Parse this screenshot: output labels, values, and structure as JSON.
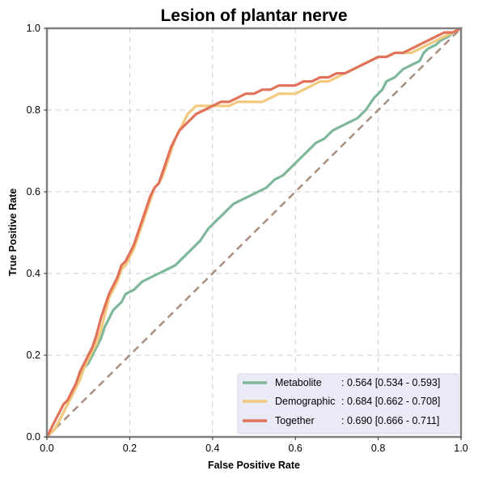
{
  "chart_data": {
    "type": "line",
    "title": "Lesion of plantar nerve",
    "xlabel": "False Positive Rate",
    "ylabel": "True Positive Rate",
    "xlim": [
      0,
      1
    ],
    "ylim": [
      0,
      1
    ],
    "xticks": [
      "0.0",
      "0.2",
      "0.4",
      "0.6",
      "0.8",
      "1.0"
    ],
    "yticks": [
      "0.0",
      "0.2",
      "0.4",
      "0.6",
      "0.8",
      "1.0"
    ],
    "grid": true,
    "legend_position": "lower-right",
    "series": [
      {
        "name": "Metabolite",
        "legend_name": "Metabolite",
        "legend_value": ": 0.564 [0.534 - 0.593]",
        "color": "#7fb79b",
        "points": [
          [
            0,
            0
          ],
          [
            0.01,
            0.01
          ],
          [
            0.02,
            0.02
          ],
          [
            0.03,
            0.04
          ],
          [
            0.04,
            0.06
          ],
          [
            0.05,
            0.08
          ],
          [
            0.06,
            0.1
          ],
          [
            0.07,
            0.12
          ],
          [
            0.08,
            0.15
          ],
          [
            0.09,
            0.17
          ],
          [
            0.1,
            0.18
          ],
          [
            0.11,
            0.2
          ],
          [
            0.12,
            0.22
          ],
          [
            0.13,
            0.24
          ],
          [
            0.14,
            0.27
          ],
          [
            0.15,
            0.29
          ],
          [
            0.16,
            0.31
          ],
          [
            0.17,
            0.32
          ],
          [
            0.18,
            0.33
          ],
          [
            0.19,
            0.35
          ],
          [
            0.21,
            0.36
          ],
          [
            0.23,
            0.38
          ],
          [
            0.25,
            0.39
          ],
          [
            0.27,
            0.4
          ],
          [
            0.29,
            0.41
          ],
          [
            0.31,
            0.42
          ],
          [
            0.33,
            0.44
          ],
          [
            0.35,
            0.46
          ],
          [
            0.37,
            0.48
          ],
          [
            0.39,
            0.51
          ],
          [
            0.41,
            0.53
          ],
          [
            0.43,
            0.55
          ],
          [
            0.45,
            0.57
          ],
          [
            0.47,
            0.58
          ],
          [
            0.49,
            0.59
          ],
          [
            0.51,
            0.6
          ],
          [
            0.53,
            0.61
          ],
          [
            0.55,
            0.63
          ],
          [
            0.57,
            0.64
          ],
          [
            0.59,
            0.66
          ],
          [
            0.61,
            0.68
          ],
          [
            0.63,
            0.7
          ],
          [
            0.65,
            0.72
          ],
          [
            0.67,
            0.73
          ],
          [
            0.69,
            0.75
          ],
          [
            0.71,
            0.76
          ],
          [
            0.73,
            0.77
          ],
          [
            0.75,
            0.78
          ],
          [
            0.77,
            0.8
          ],
          [
            0.79,
            0.83
          ],
          [
            0.81,
            0.85
          ],
          [
            0.82,
            0.87
          ],
          [
            0.84,
            0.88
          ],
          [
            0.86,
            0.9
          ],
          [
            0.88,
            0.91
          ],
          [
            0.9,
            0.92
          ],
          [
            0.91,
            0.94
          ],
          [
            0.92,
            0.95
          ],
          [
            0.94,
            0.96
          ],
          [
            0.95,
            0.97
          ],
          [
            0.97,
            0.98
          ],
          [
            0.98,
            0.99
          ],
          [
            1,
            1
          ]
        ]
      },
      {
        "name": "Demographic",
        "legend_name": "Demographic",
        "legend_value": ": 0.684 [0.662 - 0.708]",
        "color": "#f2c97e",
        "points": [
          [
            0,
            0
          ],
          [
            0.01,
            0.01
          ],
          [
            0.02,
            0.02
          ],
          [
            0.03,
            0.04
          ],
          [
            0.04,
            0.06
          ],
          [
            0.05,
            0.08
          ],
          [
            0.06,
            0.1
          ],
          [
            0.07,
            0.12
          ],
          [
            0.08,
            0.14
          ],
          [
            0.09,
            0.17
          ],
          [
            0.1,
            0.19
          ],
          [
            0.11,
            0.21
          ],
          [
            0.12,
            0.23
          ],
          [
            0.13,
            0.26
          ],
          [
            0.14,
            0.3
          ],
          [
            0.15,
            0.34
          ],
          [
            0.16,
            0.36
          ],
          [
            0.17,
            0.38
          ],
          [
            0.18,
            0.41
          ],
          [
            0.19,
            0.42
          ],
          [
            0.2,
            0.44
          ],
          [
            0.21,
            0.46
          ],
          [
            0.22,
            0.49
          ],
          [
            0.23,
            0.52
          ],
          [
            0.24,
            0.55
          ],
          [
            0.25,
            0.58
          ],
          [
            0.26,
            0.61
          ],
          [
            0.27,
            0.62
          ],
          [
            0.28,
            0.64
          ],
          [
            0.29,
            0.67
          ],
          [
            0.3,
            0.7
          ],
          [
            0.31,
            0.73
          ],
          [
            0.32,
            0.75
          ],
          [
            0.33,
            0.77
          ],
          [
            0.34,
            0.79
          ],
          [
            0.35,
            0.8
          ],
          [
            0.36,
            0.81
          ],
          [
            0.38,
            0.81
          ],
          [
            0.4,
            0.81
          ],
          [
            0.42,
            0.81
          ],
          [
            0.44,
            0.81
          ],
          [
            0.46,
            0.82
          ],
          [
            0.48,
            0.82
          ],
          [
            0.5,
            0.82
          ],
          [
            0.52,
            0.82
          ],
          [
            0.54,
            0.83
          ],
          [
            0.56,
            0.84
          ],
          [
            0.58,
            0.84
          ],
          [
            0.6,
            0.84
          ],
          [
            0.62,
            0.85
          ],
          [
            0.64,
            0.86
          ],
          [
            0.66,
            0.87
          ],
          [
            0.68,
            0.87
          ],
          [
            0.7,
            0.88
          ],
          [
            0.72,
            0.89
          ],
          [
            0.74,
            0.9
          ],
          [
            0.76,
            0.91
          ],
          [
            0.78,
            0.92
          ],
          [
            0.8,
            0.93
          ],
          [
            0.82,
            0.93
          ],
          [
            0.84,
            0.94
          ],
          [
            0.86,
            0.94
          ],
          [
            0.88,
            0.94
          ],
          [
            0.9,
            0.95
          ],
          [
            0.92,
            0.96
          ],
          [
            0.94,
            0.97
          ],
          [
            0.96,
            0.98
          ],
          [
            0.98,
            0.99
          ],
          [
            1,
            1
          ]
        ]
      },
      {
        "name": "Together",
        "legend_name": "Together",
        "legend_value": ": 0.690 [0.666 - 0.711]",
        "color": "#e0735a",
        "points": [
          [
            0,
            0
          ],
          [
            0.01,
            0.02
          ],
          [
            0.02,
            0.04
          ],
          [
            0.03,
            0.06
          ],
          [
            0.04,
            0.08
          ],
          [
            0.05,
            0.09
          ],
          [
            0.06,
            0.11
          ],
          [
            0.07,
            0.13
          ],
          [
            0.08,
            0.16
          ],
          [
            0.09,
            0.18
          ],
          [
            0.1,
            0.2
          ],
          [
            0.11,
            0.22
          ],
          [
            0.12,
            0.25
          ],
          [
            0.13,
            0.29
          ],
          [
            0.14,
            0.32
          ],
          [
            0.15,
            0.35
          ],
          [
            0.16,
            0.37
          ],
          [
            0.17,
            0.39
          ],
          [
            0.18,
            0.42
          ],
          [
            0.19,
            0.43
          ],
          [
            0.2,
            0.45
          ],
          [
            0.21,
            0.47
          ],
          [
            0.22,
            0.5
          ],
          [
            0.23,
            0.53
          ],
          [
            0.24,
            0.56
          ],
          [
            0.25,
            0.59
          ],
          [
            0.26,
            0.61
          ],
          [
            0.27,
            0.62
          ],
          [
            0.28,
            0.65
          ],
          [
            0.29,
            0.68
          ],
          [
            0.3,
            0.71
          ],
          [
            0.31,
            0.73
          ],
          [
            0.32,
            0.75
          ],
          [
            0.33,
            0.76
          ],
          [
            0.34,
            0.77
          ],
          [
            0.35,
            0.78
          ],
          [
            0.36,
            0.79
          ],
          [
            0.38,
            0.8
          ],
          [
            0.4,
            0.81
          ],
          [
            0.42,
            0.82
          ],
          [
            0.44,
            0.82
          ],
          [
            0.46,
            0.83
          ],
          [
            0.48,
            0.84
          ],
          [
            0.5,
            0.84
          ],
          [
            0.52,
            0.85
          ],
          [
            0.54,
            0.85
          ],
          [
            0.56,
            0.86
          ],
          [
            0.58,
            0.86
          ],
          [
            0.6,
            0.86
          ],
          [
            0.62,
            0.87
          ],
          [
            0.64,
            0.87
          ],
          [
            0.66,
            0.88
          ],
          [
            0.68,
            0.88
          ],
          [
            0.7,
            0.89
          ],
          [
            0.72,
            0.89
          ],
          [
            0.74,
            0.9
          ],
          [
            0.76,
            0.91
          ],
          [
            0.78,
            0.92
          ],
          [
            0.8,
            0.93
          ],
          [
            0.82,
            0.93
          ],
          [
            0.84,
            0.94
          ],
          [
            0.86,
            0.94
          ],
          [
            0.88,
            0.95
          ],
          [
            0.9,
            0.96
          ],
          [
            0.92,
            0.97
          ],
          [
            0.94,
            0.98
          ],
          [
            0.96,
            0.99
          ],
          [
            0.98,
            0.99
          ],
          [
            1,
            1
          ]
        ]
      }
    ],
    "reference_line": {
      "points": [
        [
          0,
          0
        ],
        [
          1,
          1
        ]
      ],
      "color": "#a88f80"
    },
    "legend_background": "#ebebf7"
  }
}
